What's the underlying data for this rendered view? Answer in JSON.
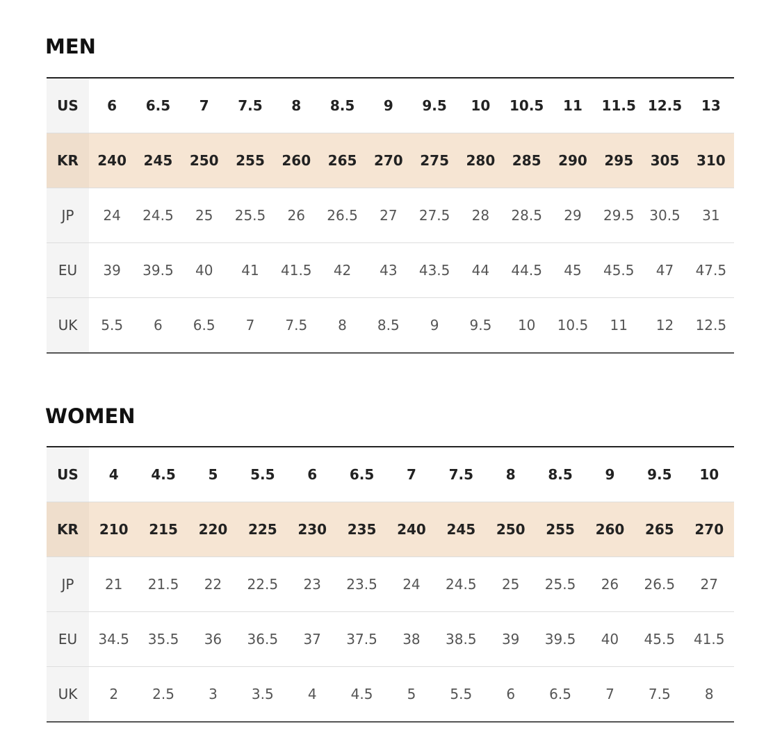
{
  "men": {
    "title": "MEN",
    "rows": [
      {
        "label": "US",
        "values": [
          "6",
          "6.5",
          "7",
          "7.5",
          "8",
          "8.5",
          "9",
          "9.5",
          "10",
          "10.5",
          "11",
          "11.5",
          "12.5",
          "13"
        ]
      },
      {
        "label": "KR",
        "values": [
          "240",
          "245",
          "250",
          "255",
          "260",
          "265",
          "270",
          "275",
          "280",
          "285",
          "290",
          "295",
          "305",
          "310"
        ]
      },
      {
        "label": "JP",
        "values": [
          "24",
          "24.5",
          "25",
          "25.5",
          "26",
          "26.5",
          "27",
          "27.5",
          "28",
          "28.5",
          "29",
          "29.5",
          "30.5",
          "31"
        ]
      },
      {
        "label": "EU",
        "values": [
          "39",
          "39.5",
          "40",
          "41",
          "41.5",
          "42",
          "43",
          "43.5",
          "44",
          "44.5",
          "45",
          "45.5",
          "47",
          "47.5"
        ]
      },
      {
        "label": "UK",
        "values": [
          "5.5",
          "6",
          "6.5",
          "7",
          "7.5",
          "8",
          "8.5",
          "9",
          "9.5",
          "10",
          "10.5",
          "11",
          "12",
          "12.5"
        ]
      }
    ]
  },
  "women": {
    "title": "WOMEN",
    "rows": [
      {
        "label": "US",
        "values": [
          "4",
          "4.5",
          "5",
          "5.5",
          "6",
          "6.5",
          "7",
          "7.5",
          "8",
          "8.5",
          "9",
          "9.5",
          "10"
        ]
      },
      {
        "label": "KR",
        "values": [
          "210",
          "215",
          "220",
          "225",
          "230",
          "235",
          "240",
          "245",
          "250",
          "255",
          "260",
          "265",
          "270"
        ]
      },
      {
        "label": "JP",
        "values": [
          "21",
          "21.5",
          "22",
          "22.5",
          "23",
          "23.5",
          "24",
          "24.5",
          "25",
          "25.5",
          "26",
          "26.5",
          "27"
        ]
      },
      {
        "label": "EU",
        "values": [
          "34.5",
          "35.5",
          "36",
          "36.5",
          "37",
          "37.5",
          "38",
          "38.5",
          "39",
          "39.5",
          "40",
          "45.5",
          "41.5"
        ]
      },
      {
        "label": "UK",
        "values": [
          "2",
          "2.5",
          "3",
          "3.5",
          "4",
          "4.5",
          "5",
          "5.5",
          "6",
          "6.5",
          "7",
          "7.5",
          "8"
        ]
      }
    ]
  },
  "colors": {
    "highlight_row": "#f6e5d3",
    "label_column": "#f4f4f4"
  }
}
